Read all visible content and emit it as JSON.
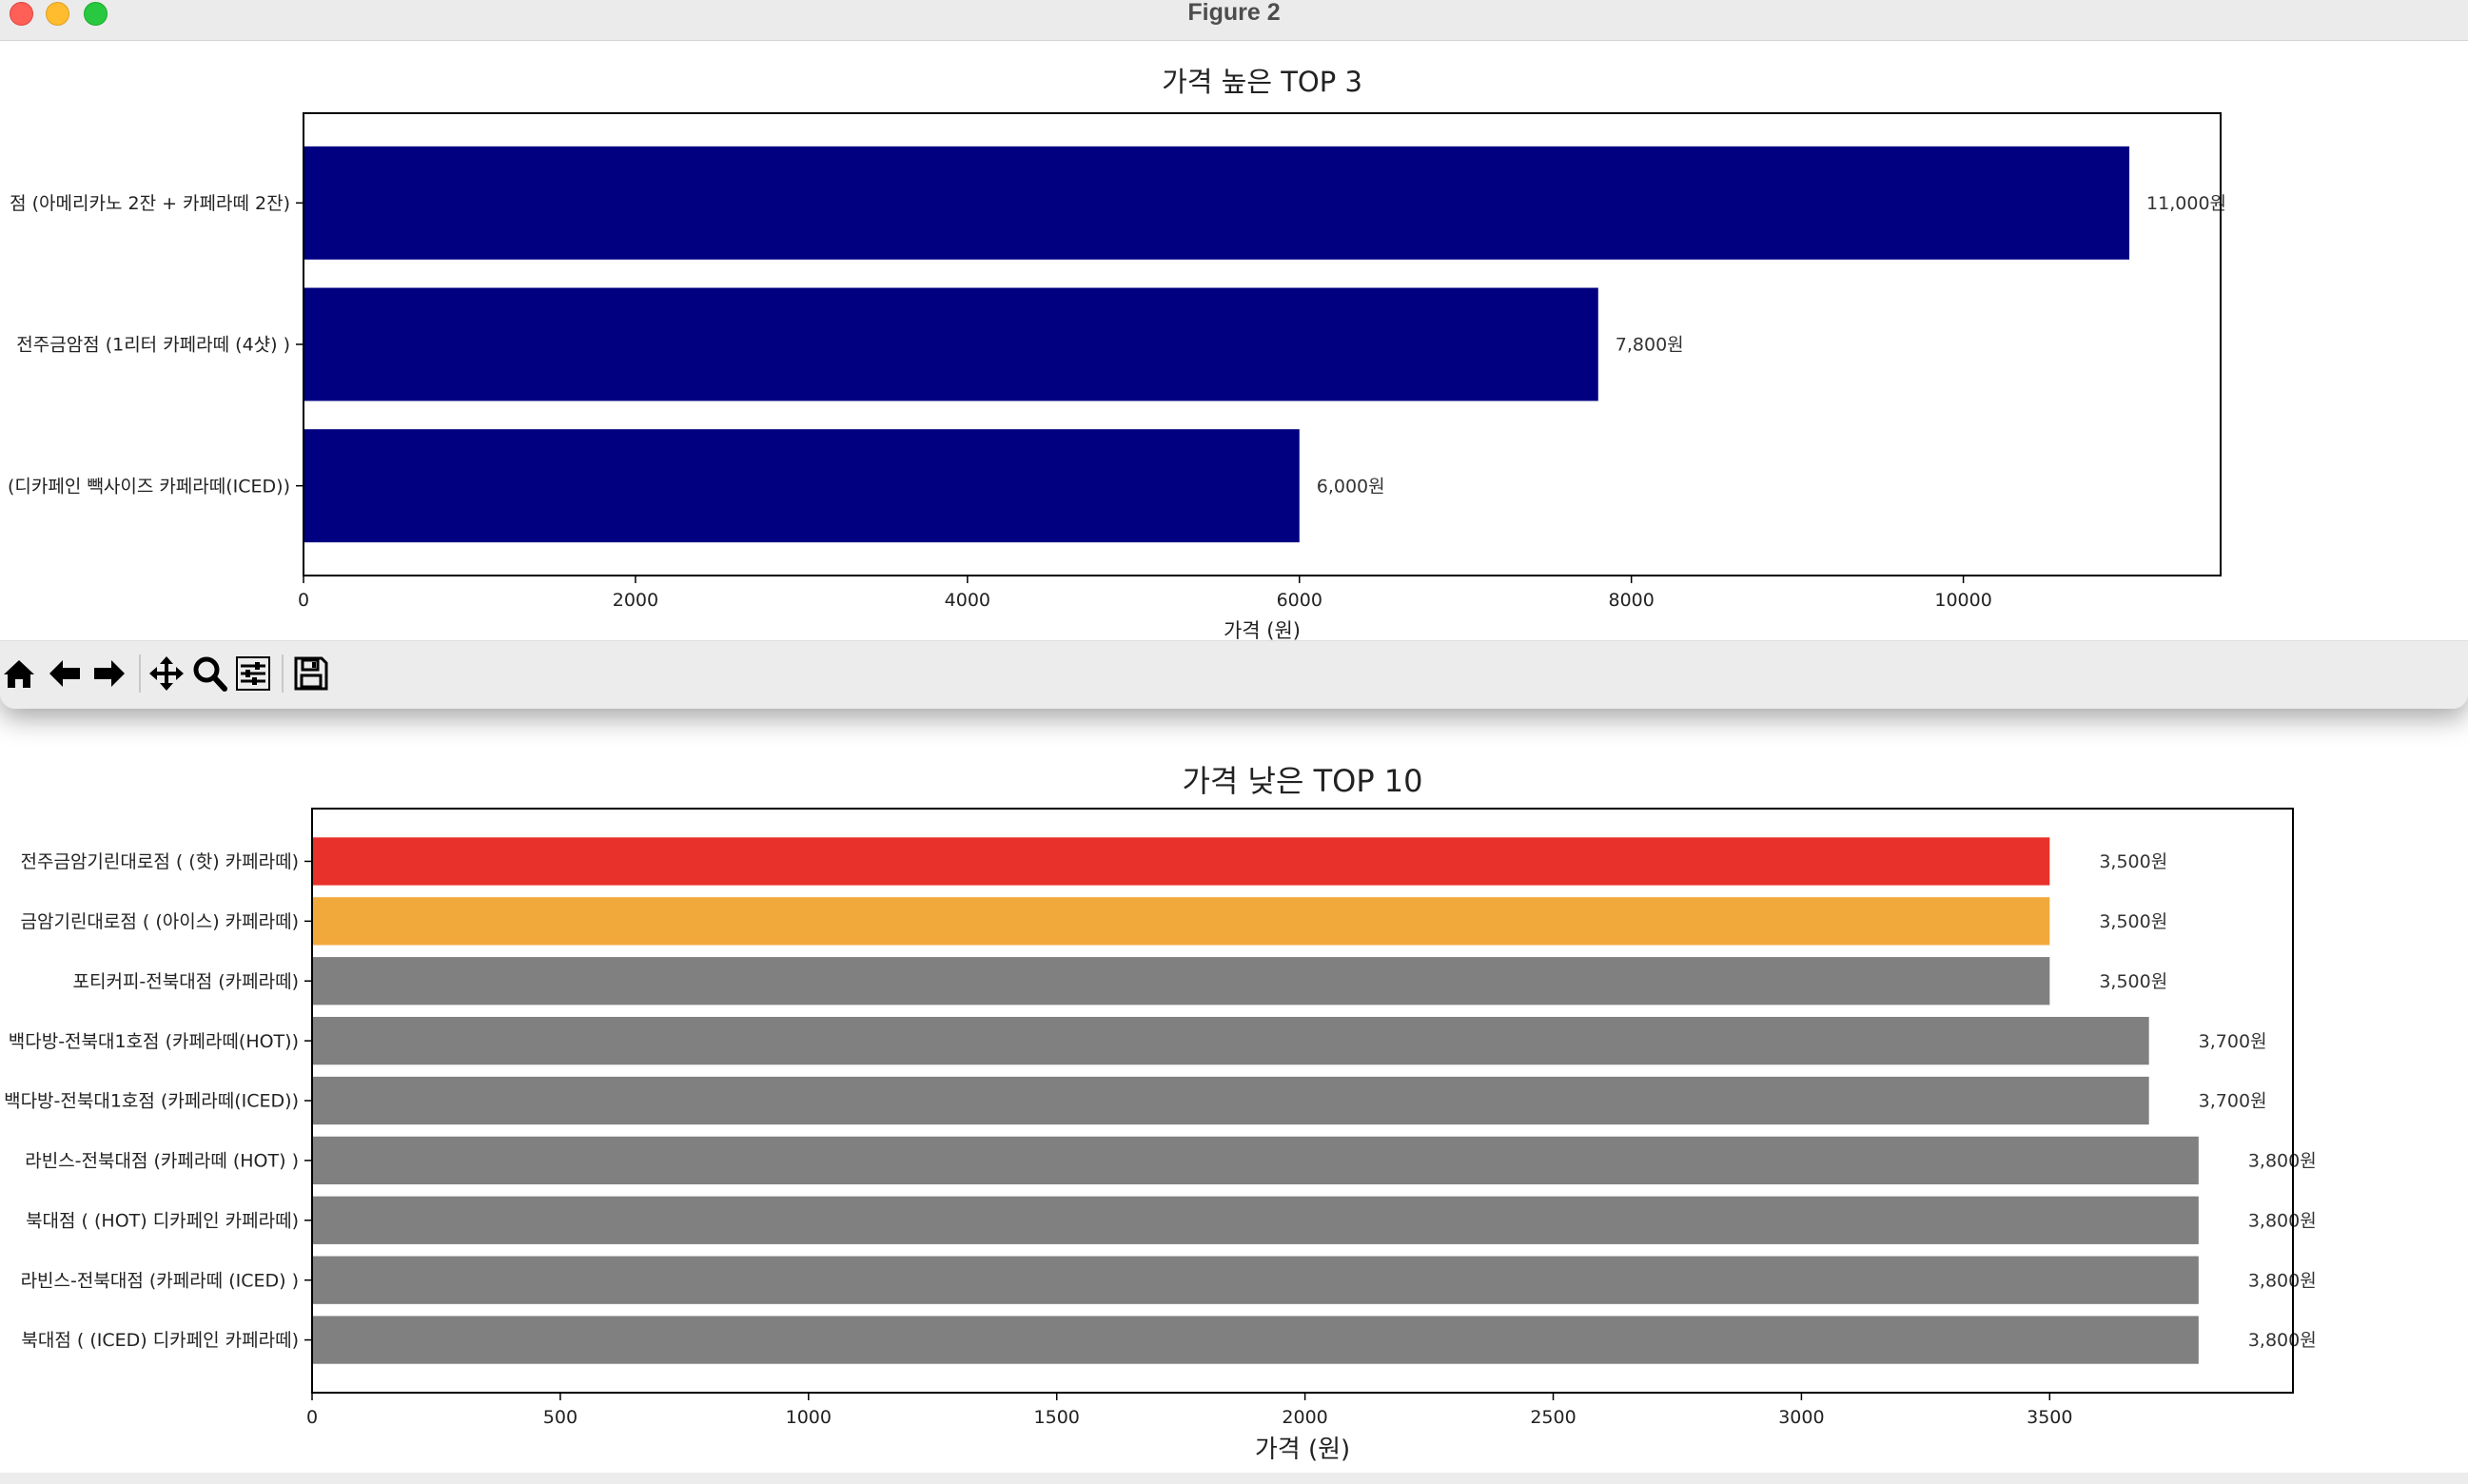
{
  "window": {
    "title": "Figure 2"
  },
  "toolbar": {
    "buttons": [
      {
        "name": "home",
        "icon": "home-icon"
      },
      {
        "name": "back",
        "icon": "arrow-left-icon"
      },
      {
        "name": "forward",
        "icon": "arrow-right-icon"
      },
      {
        "name": "pan",
        "icon": "move-icon"
      },
      {
        "name": "zoom",
        "icon": "magnifier-icon"
      },
      {
        "name": "configure",
        "icon": "sliders-icon"
      },
      {
        "name": "save",
        "icon": "floppy-disk-icon"
      }
    ]
  },
  "chart_data": [
    {
      "type": "bar",
      "orientation": "horizontal",
      "title": "가격 높은 TOP 3",
      "xlabel": "가격 (원)",
      "ylabel": "",
      "xlim": [
        0,
        11550
      ],
      "xticks": [
        0,
        2000,
        4000,
        6000,
        8000,
        10000
      ],
      "categories": [
        "점 (아메리카노 2잔 + 카페라떼 2잔)",
        "전주금암점 (1리터 카페라떼 (4샷) )",
        "(디카페인 빽사이즈 카페라떼(ICED))"
      ],
      "values": [
        11000,
        7800,
        6000
      ],
      "data_labels": [
        "11,000원",
        "7,800원",
        "6,000원"
      ],
      "bar_colors": [
        "#000080",
        "#000080",
        "#000080"
      ]
    },
    {
      "type": "bar",
      "orientation": "horizontal",
      "title": "가격 낮은 TOP 10",
      "xlabel": "가격 (원)",
      "ylabel": "",
      "xlim": [
        0,
        3990
      ],
      "xticks": [
        0,
        500,
        1000,
        1500,
        2000,
        2500,
        3000,
        3500
      ],
      "categories": [
        "전주금암기린대로점 ( (핫) 카페라떼)",
        "금암기린대로점 ( (아이스) 카페라떼)",
        "포티커피-전북대점 (카페라떼)",
        "백다방-전북대1호점 (카페라떼(HOT))",
        "백다방-전북대1호점 (카페라떼(ICED))",
        "라빈스-전북대점 (카페라떼  (HOT) )",
        "북대점 ( (HOT) 디카페인 카페라떼)",
        "라빈스-전북대점 (카페라떼 (ICED) )",
        "북대점 ( (ICED) 디카페인 카페라떼)"
      ],
      "values": [
        3500,
        3500,
        3500,
        3700,
        3700,
        3800,
        3800,
        3800,
        3800
      ],
      "data_labels": [
        "3,500원",
        "3,500원",
        "3,500원",
        "3,700원",
        "3,700원",
        "3,800원",
        "3,800원",
        "3,800원",
        "3,800원"
      ],
      "bar_colors": [
        "#e8312a",
        "#f2a93b",
        "#808080",
        "#808080",
        "#808080",
        "#808080",
        "#808080",
        "#808080",
        "#808080"
      ]
    }
  ]
}
